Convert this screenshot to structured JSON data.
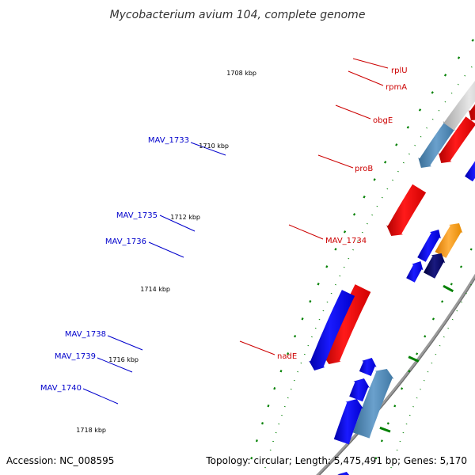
{
  "title": "Mycobacterium avium 104, complete genome",
  "footer": {
    "accession": "Accession: NC_008595",
    "summary": "Topology: circular; Length: 5,475,491 bp; Genes: 5,170"
  },
  "kbp_ticks": [
    "1708 kbp",
    "1710 kbp",
    "1712 kbp",
    "1714 kbp",
    "1716 kbp",
    "1718 kbp"
  ],
  "labels": {
    "plus": [
      "rplU",
      "rpmA",
      "obgE",
      "proB",
      "MAV_1734",
      "nadE"
    ],
    "minus": [
      "MAV_1733",
      "MAV_1735",
      "MAV_1736",
      "MAV_1738",
      "MAV_1739",
      "MAV_1740"
    ]
  },
  "colors": {
    "plus_label": "#cc0000",
    "minus_label": "#0000cc",
    "plus_gene": "#ff0000",
    "plus_gene_faded": "#f28b8b",
    "minus_gene": "#0000ff",
    "orange_gene": "#ff9900",
    "steelblue_gene": "#4682b4",
    "navy_gene": "#000066",
    "gray_feature": "#bfbfbf",
    "backbone": "#888888",
    "tick_dots": "#008000"
  }
}
